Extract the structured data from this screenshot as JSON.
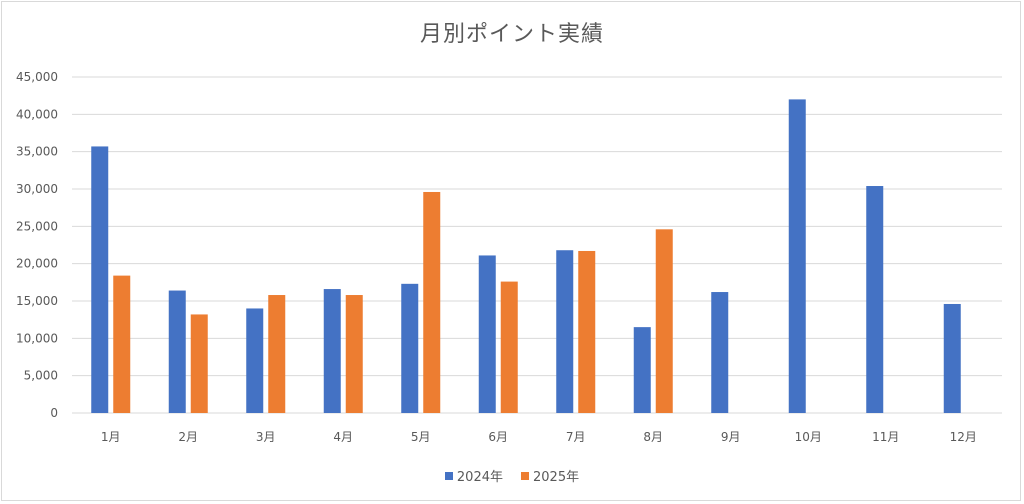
{
  "chart_data": {
    "type": "bar",
    "title": "月別ポイント実績",
    "xlabel": "",
    "ylabel": "",
    "categories": [
      "1月",
      "2月",
      "3月",
      "4月",
      "5月",
      "6月",
      "7月",
      "8月",
      "9月",
      "10月",
      "11月",
      "12月"
    ],
    "series": [
      {
        "name": "2024年",
        "color": "#4472C4",
        "values": [
          35700,
          16400,
          14000,
          16600,
          17300,
          21100,
          21800,
          11500,
          16200,
          42000,
          30400,
          14600
        ]
      },
      {
        "name": "2025年",
        "color": "#ED7D31",
        "values": [
          18400,
          13200,
          15800,
          15800,
          29600,
          17600,
          21700,
          24600,
          null,
          null,
          null,
          null
        ]
      }
    ],
    "ylim": [
      0,
      45000
    ],
    "yticks": [
      0,
      5000,
      10000,
      15000,
      20000,
      25000,
      30000,
      35000,
      40000,
      45000
    ],
    "ytick_labels": [
      "0",
      "5,000",
      "10,000",
      "15,000",
      "20,000",
      "25,000",
      "30,000",
      "35,000",
      "40,000",
      "45,000"
    ],
    "grid": true,
    "legend_position": "bottom"
  }
}
